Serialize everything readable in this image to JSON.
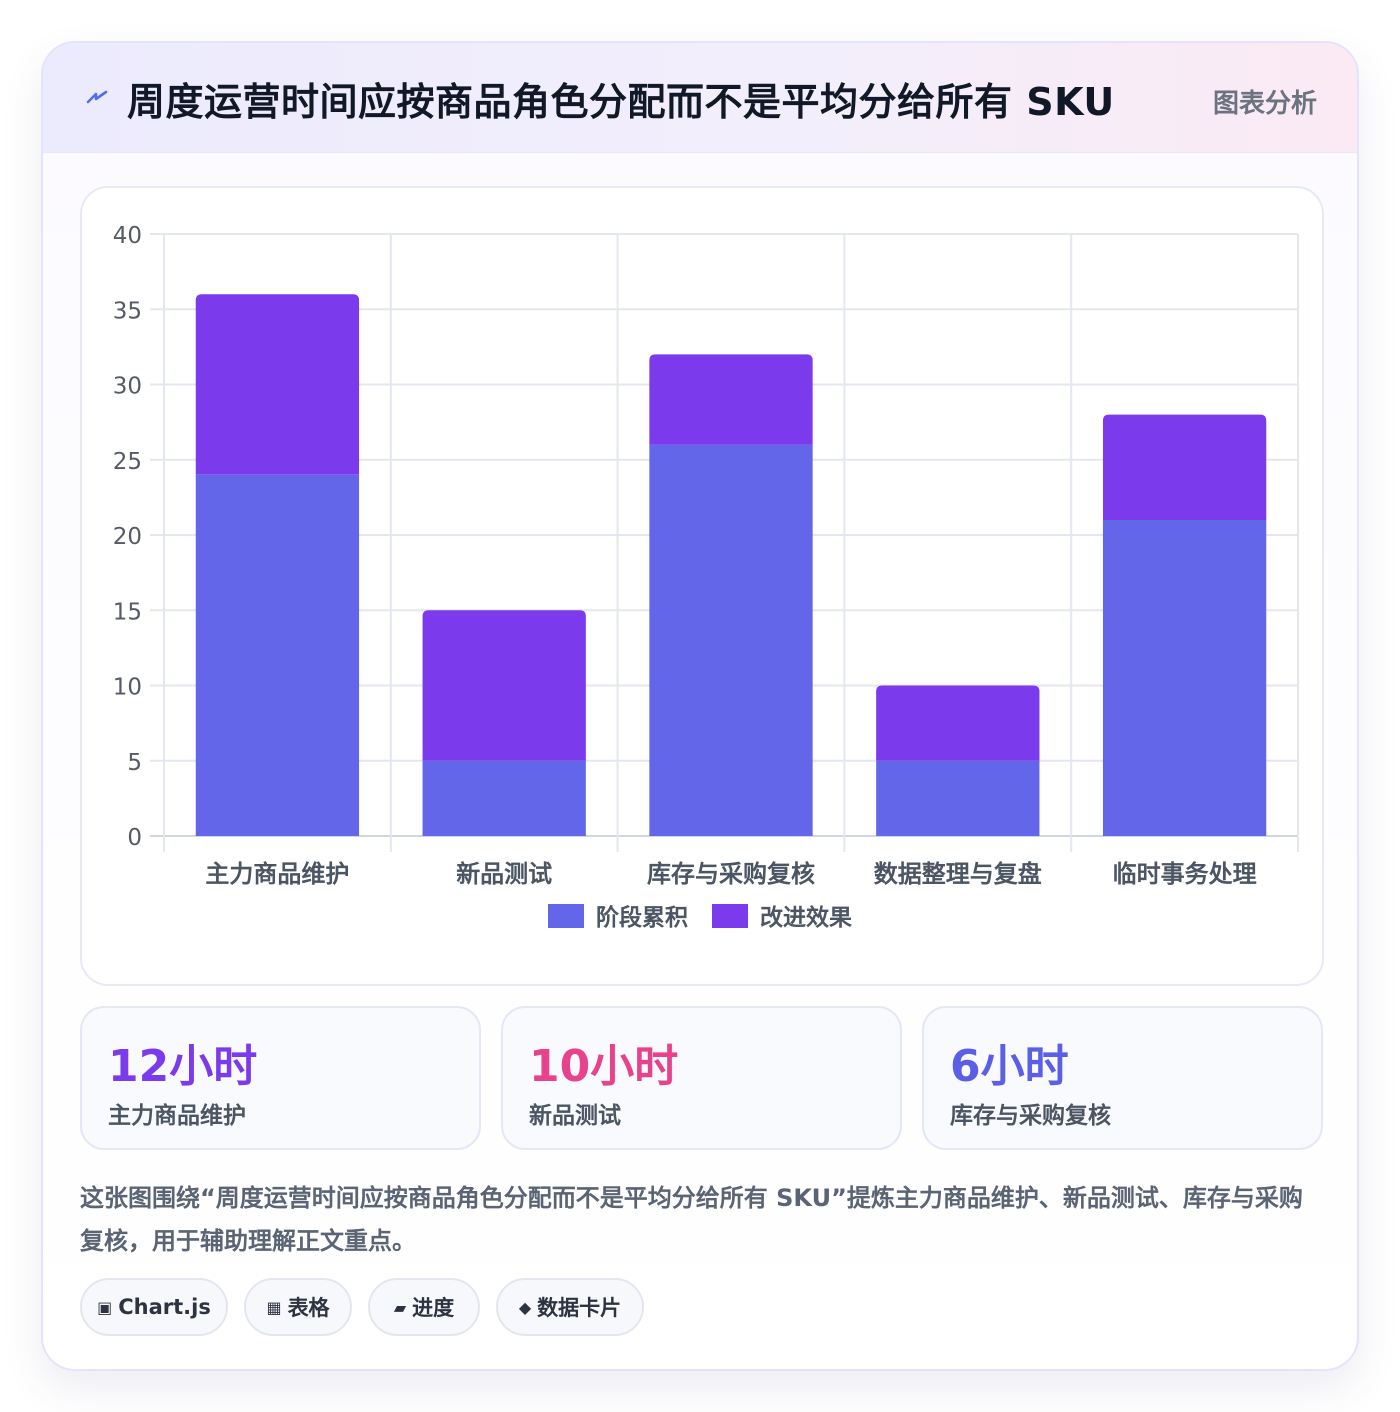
{
  "header": {
    "title": "周度运营时间应按商品角色分配而不是平均分给所有 SKU",
    "tag": "图表分析",
    "icon": "bolt-icon"
  },
  "colors": {
    "series_a": "#6366e9",
    "series_b": "#7c3aed",
    "stat_1": "#7c3aed",
    "stat_2": "#e8428c",
    "stat_3": "#5b5fe6"
  },
  "chart_data": {
    "type": "bar",
    "stacked": true,
    "categories": [
      "主力商品维护",
      "新品测试",
      "库存与采购复核",
      "数据整理与复盘",
      "临时事务处理"
    ],
    "series": [
      {
        "name": "阶段累积",
        "values": [
          24,
          5,
          26,
          5,
          21
        ],
        "color": "#6366e9"
      },
      {
        "name": "改进效果",
        "values": [
          12,
          10,
          6,
          5,
          7
        ],
        "color": "#7c3aed"
      }
    ],
    "ylim": [
      0,
      40
    ],
    "yticks": [
      0,
      5,
      10,
      15,
      20,
      25,
      30,
      35,
      40
    ],
    "grid": true,
    "legend": "bottom"
  },
  "stats": [
    {
      "value": "12小时",
      "label": "主力商品维护"
    },
    {
      "value": "10小时",
      "label": "新品测试"
    },
    {
      "value": "6小时",
      "label": "库存与采购复核"
    }
  ],
  "description": "这张图围绕“周度运营时间应按商品角色分配而不是平均分给所有 SKU”提炼主力商品维护、新品测试、库存与采购复核，用于辅助理解正文重点。",
  "chips": [
    {
      "icon": "▣",
      "label": "Chart.js"
    },
    {
      "icon": "▦",
      "label": "表格"
    },
    {
      "icon": "▰",
      "label": "进度"
    },
    {
      "icon": "◆",
      "label": "数据卡片"
    }
  ]
}
